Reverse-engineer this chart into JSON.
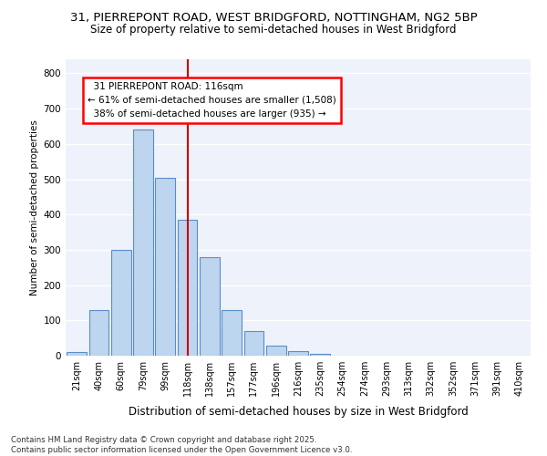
{
  "title1": "31, PIERREPONT ROAD, WEST BRIDGFORD, NOTTINGHAM, NG2 5BP",
  "title2": "Size of property relative to semi-detached houses in West Bridgford",
  "xlabel": "Distribution of semi-detached houses by size in West Bridgford",
  "ylabel": "Number of semi-detached properties",
  "categories": [
    "21sqm",
    "40sqm",
    "60sqm",
    "79sqm",
    "99sqm",
    "118sqm",
    "138sqm",
    "157sqm",
    "177sqm",
    "196sqm",
    "216sqm",
    "235sqm",
    "254sqm",
    "274sqm",
    "293sqm",
    "313sqm",
    "332sqm",
    "352sqm",
    "371sqm",
    "391sqm",
    "410sqm"
  ],
  "values": [
    10,
    130,
    300,
    640,
    505,
    385,
    280,
    130,
    70,
    28,
    12,
    5,
    0,
    0,
    0,
    0,
    0,
    0,
    0,
    0,
    0
  ],
  "bar_color": "#bdd5ee",
  "bar_edge_color": "#5b8dc8",
  "vline_color": "#cc0000",
  "vline_x": 5,
  "property_label": "31 PIERREPONT ROAD: 116sqm",
  "smaller_pct": "61%",
  "smaller_count": "1,508",
  "larger_pct": "38%",
  "larger_count": "935",
  "ylim": [
    0,
    840
  ],
  "yticks": [
    0,
    100,
    200,
    300,
    400,
    500,
    600,
    700,
    800
  ],
  "background_color": "#eef2fb",
  "grid_color": "#ffffff",
  "footer1": "Contains HM Land Registry data © Crown copyright and database right 2025.",
  "footer2": "Contains public sector information licensed under the Open Government Licence v3.0."
}
